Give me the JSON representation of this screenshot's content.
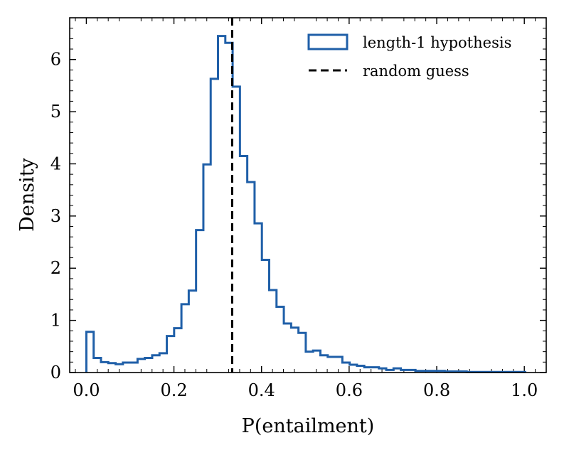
{
  "chart_data": {
    "type": "histogram",
    "xlabel": "P(entailment)",
    "ylabel": "Density",
    "xlim": [
      -0.038,
      1.05
    ],
    "ylim": [
      0,
      6.8
    ],
    "xticks": [
      0.0,
      0.2,
      0.4,
      0.6,
      0.8,
      1.0
    ],
    "xtick_labels": [
      "0.0",
      "0.2",
      "0.4",
      "0.6",
      "0.8",
      "1.0"
    ],
    "yticks": [
      0,
      1,
      2,
      3,
      4,
      5,
      6
    ],
    "ytick_labels": [
      "0",
      "1",
      "2",
      "3",
      "4",
      "5",
      "6"
    ],
    "bin_width": 0.0167,
    "bin_start": 0.0,
    "series": [
      {
        "name": "length-1 hypothesis",
        "style": "step",
        "color": "#1f5fa8",
        "values": [
          0.78,
          0.28,
          0.2,
          0.18,
          0.16,
          0.19,
          0.19,
          0.26,
          0.28,
          0.33,
          0.37,
          0.7,
          0.85,
          1.31,
          1.57,
          2.73,
          3.99,
          5.63,
          6.45,
          6.32,
          5.48,
          4.15,
          3.65,
          2.86,
          2.16,
          1.58,
          1.26,
          0.94,
          0.86,
          0.76,
          0.4,
          0.42,
          0.33,
          0.3,
          0.3,
          0.19,
          0.15,
          0.13,
          0.1,
          0.1,
          0.08,
          0.05,
          0.08,
          0.05,
          0.05,
          0.03,
          0.03,
          0.03,
          0.03,
          0.02,
          0.02,
          0.02,
          0.01,
          0.01,
          0.01,
          0.01,
          0.01,
          0.01,
          0.01,
          0.01
        ]
      },
      {
        "name": "random guess",
        "style": "vline-dashed",
        "color": "#000000",
        "x": 0.333
      }
    ],
    "legend": {
      "position": "top-right",
      "entries": [
        "length-1 hypothesis",
        "random guess"
      ]
    }
  }
}
